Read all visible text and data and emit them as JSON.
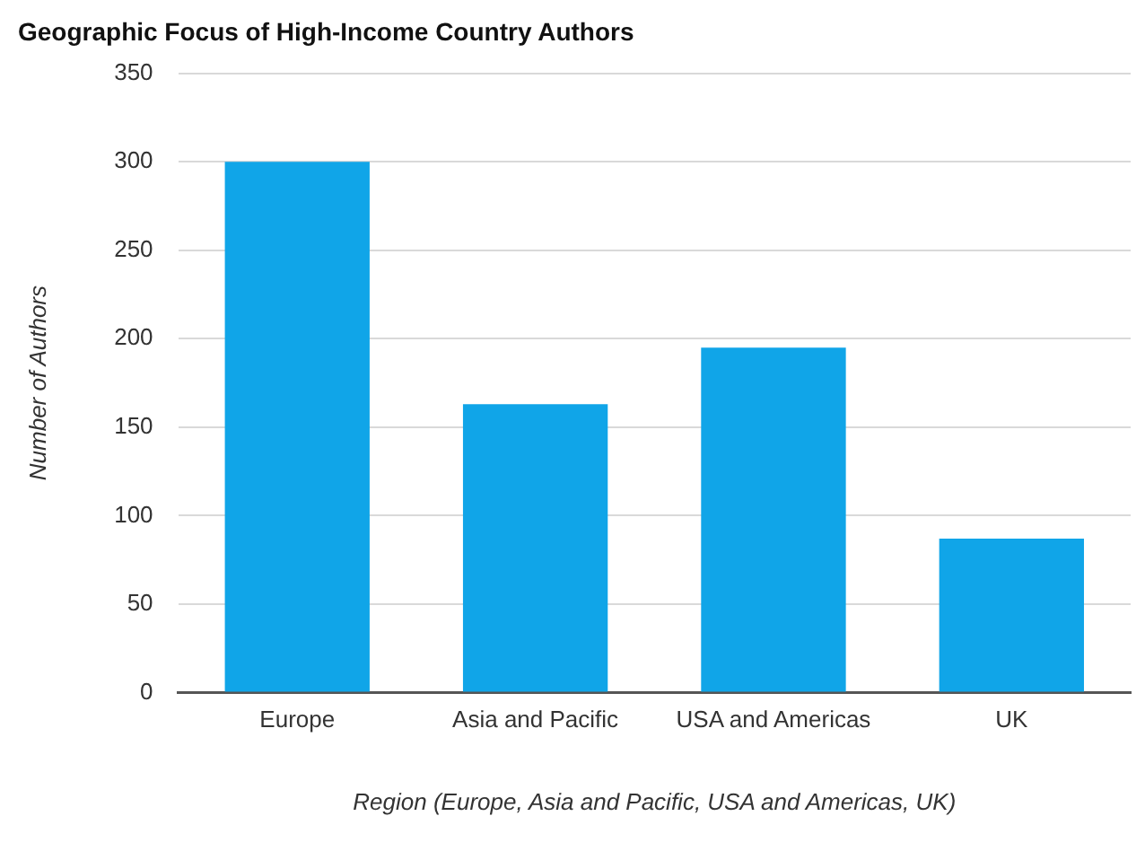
{
  "chart_data": {
    "type": "bar",
    "title": "Geographic Focus of High-Income Country Authors",
    "xlabel": "Region (Europe, Asia and Pacific, USA and Americas, UK)",
    "ylabel": "Number of Authors",
    "categories": [
      "Europe",
      "Asia and Pacific",
      "USA and Americas",
      "UK"
    ],
    "values": [
      300,
      163,
      195,
      87
    ],
    "color": "#10a5e8",
    "ylim": [
      0,
      350
    ],
    "yticks": [
      0,
      50,
      100,
      150,
      200,
      250,
      300,
      350
    ],
    "grid": "y",
    "legend": false
  }
}
